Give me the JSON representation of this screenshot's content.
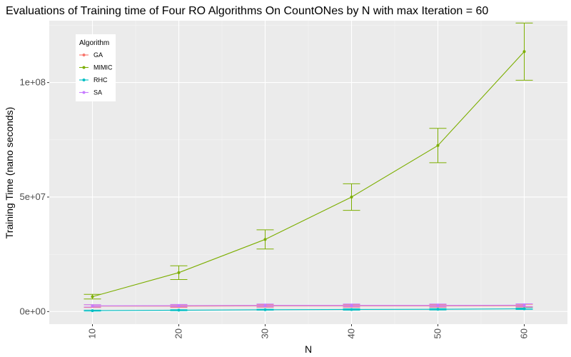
{
  "chart_data": {
    "type": "line",
    "title": "Evaluations of Training time of Four RO Algorithms On CountONes by N with max Iteration = 60",
    "xlabel": "N",
    "ylabel": "Training Time (nano seconds)",
    "x": [
      10,
      20,
      30,
      40,
      50,
      60
    ],
    "xlim": [
      5,
      65
    ],
    "ylim": [
      -5500000,
      127000000
    ],
    "x_ticks": [
      10,
      20,
      30,
      40,
      50,
      60
    ],
    "y_ticks": [
      0,
      50000000,
      100000000
    ],
    "y_tick_labels": [
      "0e+00",
      "5e+07",
      "1e+08"
    ],
    "grid": true,
    "legend": {
      "title": "Algorithm",
      "position": "top-left inside plot"
    },
    "series": [
      {
        "name": "GA",
        "color": "#F8766D",
        "values": [
          2400000,
          2400000,
          2500000,
          2500000,
          2500000,
          2600000
        ],
        "error": [
          600000,
          600000,
          600000,
          600000,
          600000,
          600000
        ]
      },
      {
        "name": "MIMIC",
        "color": "#7CAE00",
        "values": [
          6500000,
          17000000,
          31500000,
          50000000,
          72500000,
          113500000
        ],
        "error": [
          1000000,
          3000000,
          4200000,
          5800000,
          7500000,
          12500000
        ]
      },
      {
        "name": "RHC",
        "color": "#00BFC4",
        "values": [
          400000,
          600000,
          800000,
          900000,
          1000000,
          1200000
        ],
        "error": [
          200000,
          200000,
          200000,
          300000,
          300000,
          300000
        ]
      },
      {
        "name": "SA",
        "color": "#C77CFF",
        "values": [
          2500000,
          2600000,
          2700000,
          2700000,
          2700000,
          2800000
        ],
        "error": [
          500000,
          500000,
          600000,
          600000,
          600000,
          600000
        ]
      }
    ]
  }
}
